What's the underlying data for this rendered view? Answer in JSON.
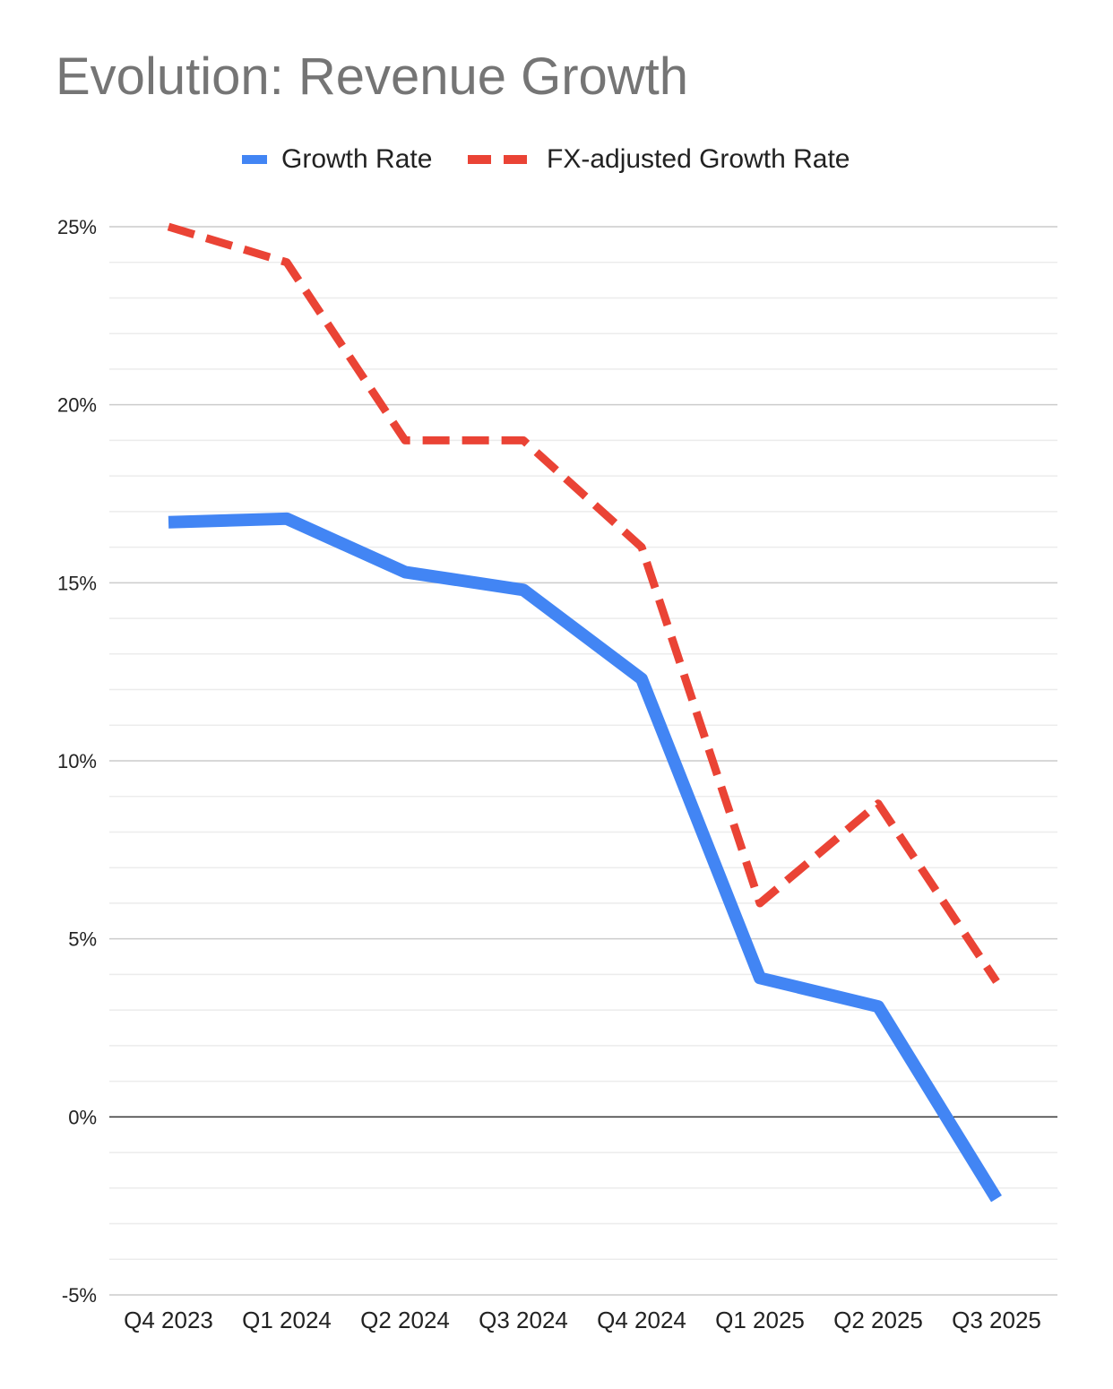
{
  "chart_data": {
    "type": "line",
    "title": "Evolution: Revenue Growth",
    "xlabel": "",
    "ylabel": "",
    "categories": [
      "Q4 2023",
      "Q1 2024",
      "Q2 2024",
      "Q3 2024",
      "Q4 2024",
      "Q1 2025",
      "Q2 2025",
      "Q3 2025"
    ],
    "series": [
      {
        "name": "Growth Rate",
        "color": "#4285f4",
        "style": "solid",
        "values": [
          16.7,
          16.8,
          15.3,
          14.8,
          12.3,
          3.9,
          3.1,
          -2.3
        ]
      },
      {
        "name": "FX-adjusted Growth Rate",
        "color": "#ea4335",
        "style": "dashed",
        "values": [
          25.0,
          24.0,
          19.0,
          19.0,
          16.0,
          6.0,
          8.8,
          3.8
        ]
      }
    ],
    "ylim": [
      -5,
      25
    ],
    "yticks": [
      25,
      20,
      15,
      10,
      5,
      0,
      -5
    ],
    "ytick_labels": [
      "25%",
      "20%",
      "15%",
      "10%",
      "5%",
      "0%",
      "-5%"
    ],
    "minor_gridlines": true,
    "legend": "top-center"
  }
}
